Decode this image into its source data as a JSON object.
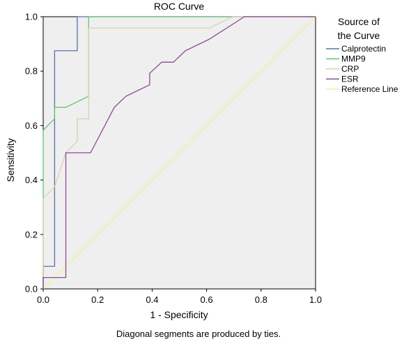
{
  "chart_data": {
    "type": "line",
    "title": "ROC Curve",
    "xlabel": "1 - Specificity",
    "ylabel": "Sensitivity",
    "xlim": [
      0,
      1
    ],
    "ylim": [
      0,
      1
    ],
    "x_ticks": [
      "0.0",
      "0.2",
      "0.4",
      "0.6",
      "0.8",
      "1.0"
    ],
    "y_ticks": [
      "0.0",
      "0.2",
      "0.4",
      "0.6",
      "0.8",
      "1.0"
    ],
    "grid": false,
    "legend": {
      "title_line1": "Source of",
      "title_line2": "the Curve",
      "placement": "right"
    },
    "footnote": "Diagonal segments are produced by ties.",
    "series": [
      {
        "name": "Calprotectin",
        "color": "#5b6fae",
        "points": [
          [
            0,
            0
          ],
          [
            0,
            0.083
          ],
          [
            0.042,
            0.083
          ],
          [
            0.042,
            0.875
          ],
          [
            0.125,
            0.875
          ],
          [
            0.125,
            1.0
          ],
          [
            1.0,
            1.0
          ]
        ]
      },
      {
        "name": "MMP9",
        "color": "#5cc96a",
        "points": [
          [
            0,
            0
          ],
          [
            0,
            0.583
          ],
          [
            0.042,
            0.625
          ],
          [
            0.042,
            0.667
          ],
          [
            0.083,
            0.667
          ],
          [
            0.167,
            0.708
          ],
          [
            0.167,
            1.0
          ],
          [
            1.0,
            1.0
          ]
        ]
      },
      {
        "name": "CRP",
        "color": "#d8d2a8",
        "points": [
          [
            0,
            0
          ],
          [
            0,
            0.333
          ],
          [
            0.042,
            0.375
          ],
          [
            0.083,
            0.5
          ],
          [
            0.125,
            0.542
          ],
          [
            0.125,
            0.625
          ],
          [
            0.167,
            0.625
          ],
          [
            0.167,
            0.958
          ],
          [
            0.609,
            0.958
          ],
          [
            0.696,
            1.0
          ],
          [
            1.0,
            1.0
          ]
        ]
      },
      {
        "name": "ESR",
        "color": "#8e4a93",
        "points": [
          [
            0,
            0
          ],
          [
            0,
            0.042
          ],
          [
            0.083,
            0.042
          ],
          [
            0.083,
            0.5
          ],
          [
            0.174,
            0.5
          ],
          [
            0.261,
            0.667
          ],
          [
            0.304,
            0.708
          ],
          [
            0.391,
            0.75
          ],
          [
            0.391,
            0.792
          ],
          [
            0.435,
            0.833
          ],
          [
            0.478,
            0.833
          ],
          [
            0.522,
            0.875
          ],
          [
            0.609,
            0.917
          ],
          [
            0.739,
            1.0
          ],
          [
            1.0,
            1.0
          ]
        ]
      },
      {
        "name": "Reference Line",
        "color": "#f2ef9a",
        "points": [
          [
            0,
            0
          ],
          [
            1,
            1
          ]
        ]
      }
    ]
  }
}
